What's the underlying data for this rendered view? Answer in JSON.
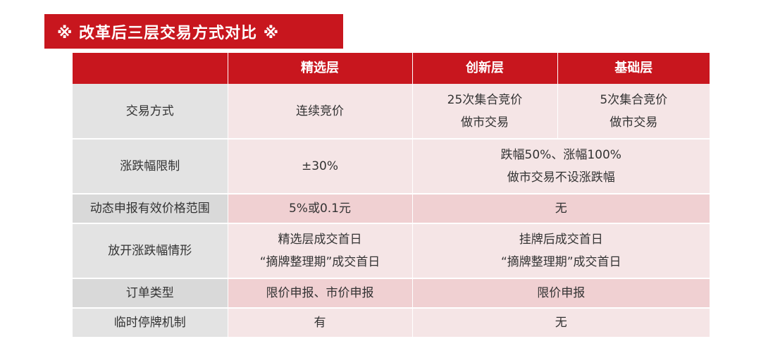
{
  "banner": {
    "title": "※ 改革后三层交易方式对比 ※"
  },
  "table": {
    "headers": [
      "",
      "精选层",
      "创新层",
      "基础层"
    ],
    "rows": [
      {
        "label": "交易方式",
        "jingxuan": "连续竞价",
        "chuangxin": [
          "25次集合竞价",
          "做市交易"
        ],
        "jichu": [
          "5次集合竞价",
          "做市交易"
        ]
      },
      {
        "label": "涨跌幅限制",
        "jingxuan": "±30%",
        "merged": [
          "跌幅50%、涨幅100%",
          "做市交易不设涨跌幅"
        ]
      },
      {
        "label": "动态申报有效价格范围",
        "jingxuan": "5%或0.1元",
        "merged": "无"
      },
      {
        "label": "放开涨跌幅情形",
        "jingxuan": [
          "精选层成交首日",
          "“摘牌整理期”成交首日"
        ],
        "merged": [
          "挂牌后成交首日",
          "“摘牌整理期”成交首日"
        ]
      },
      {
        "label": "订单类型",
        "jingxuan": "限价申报、市价申报",
        "merged": "限价申报"
      },
      {
        "label": "临时停牌机制",
        "jingxuan": "有",
        "merged": "无"
      }
    ]
  }
}
